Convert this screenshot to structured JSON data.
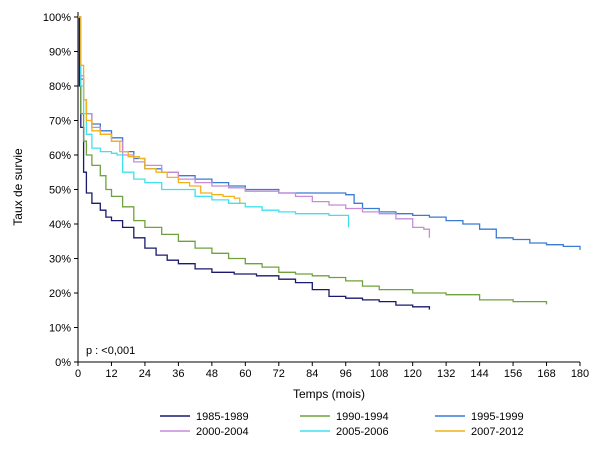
{
  "chart_data": {
    "type": "line",
    "xlabel": "Temps (mois)",
    "ylabel": "Taux de survie",
    "xlim": [
      0,
      180
    ],
    "ylim": [
      0,
      100
    ],
    "x_ticks": [
      0,
      12,
      24,
      36,
      48,
      60,
      72,
      84,
      96,
      108,
      120,
      132,
      144,
      156,
      168,
      180
    ],
    "y_ticks": [
      0,
      10,
      20,
      30,
      40,
      50,
      60,
      70,
      80,
      90,
      100
    ],
    "y_tick_labels": [
      "0%",
      "10%",
      "20%",
      "30%",
      "40%",
      "50%",
      "60%",
      "70%",
      "80%",
      "90%",
      "100%"
    ],
    "grid": false,
    "legend_position": "bottom",
    "annotation": "p : <0,001",
    "series": [
      {
        "name": "1985-1989",
        "color": "#1a1a6e",
        "points": [
          [
            0,
            100
          ],
          [
            0.5,
            80
          ],
          [
            1,
            68
          ],
          [
            2,
            55
          ],
          [
            3,
            49
          ],
          [
            5,
            46
          ],
          [
            8,
            44
          ],
          [
            10,
            42
          ],
          [
            12,
            41
          ],
          [
            16,
            39
          ],
          [
            20,
            36
          ],
          [
            24,
            33
          ],
          [
            28,
            31
          ],
          [
            32,
            29.5
          ],
          [
            36,
            28.5
          ],
          [
            42,
            27
          ],
          [
            48,
            26
          ],
          [
            56,
            25.5
          ],
          [
            64,
            25
          ],
          [
            72,
            24
          ],
          [
            78,
            23
          ],
          [
            84,
            21
          ],
          [
            90,
            19
          ],
          [
            96,
            18.5
          ],
          [
            102,
            18
          ],
          [
            108,
            17.5
          ],
          [
            114,
            16.5
          ],
          [
            120,
            16
          ],
          [
            126,
            15.2
          ]
        ]
      },
      {
        "name": "1990-1994",
        "color": "#6fa23c",
        "points": [
          [
            0,
            100
          ],
          [
            1,
            72
          ],
          [
            2,
            64
          ],
          [
            3,
            60
          ],
          [
            5,
            57
          ],
          [
            8,
            54
          ],
          [
            10,
            50
          ],
          [
            12,
            48
          ],
          [
            16,
            45
          ],
          [
            20,
            41
          ],
          [
            24,
            39
          ],
          [
            30,
            37
          ],
          [
            36,
            35
          ],
          [
            42,
            33
          ],
          [
            48,
            31.5
          ],
          [
            54,
            30
          ],
          [
            60,
            28.5
          ],
          [
            66,
            27.5
          ],
          [
            72,
            26
          ],
          [
            78,
            25.5
          ],
          [
            84,
            25
          ],
          [
            90,
            24.5
          ],
          [
            96,
            23.5
          ],
          [
            102,
            22
          ],
          [
            108,
            21
          ],
          [
            120,
            20
          ],
          [
            132,
            19.5
          ],
          [
            144,
            18
          ],
          [
            156,
            17.5
          ],
          [
            168,
            16.7
          ]
        ]
      },
      {
        "name": "1995-1999",
        "color": "#3a7bd5",
        "points": [
          [
            0,
            100
          ],
          [
            1,
            82
          ],
          [
            2,
            76
          ],
          [
            3,
            72
          ],
          [
            5,
            69
          ],
          [
            8,
            67
          ],
          [
            12,
            65
          ],
          [
            16,
            61
          ],
          [
            20,
            59
          ],
          [
            24,
            56
          ],
          [
            30,
            55
          ],
          [
            36,
            54
          ],
          [
            42,
            53
          ],
          [
            48,
            52
          ],
          [
            54,
            51
          ],
          [
            60,
            50
          ],
          [
            72,
            49
          ],
          [
            84,
            49
          ],
          [
            96,
            48.5
          ],
          [
            99,
            46
          ],
          [
            102,
            44.5
          ],
          [
            108,
            43.5
          ],
          [
            114,
            43
          ],
          [
            120,
            42.5
          ],
          [
            126,
            42
          ],
          [
            132,
            41
          ],
          [
            138,
            40
          ],
          [
            144,
            38.5
          ],
          [
            150,
            36
          ],
          [
            156,
            35.5
          ],
          [
            162,
            34.5
          ],
          [
            168,
            34
          ],
          [
            174,
            33.5
          ],
          [
            180,
            32.5
          ]
        ]
      },
      {
        "name": "2000-2004",
        "color": "#c88bd8",
        "points": [
          [
            0,
            100
          ],
          [
            1,
            83
          ],
          [
            2,
            76
          ],
          [
            3,
            72
          ],
          [
            5,
            68
          ],
          [
            8,
            66
          ],
          [
            12,
            64
          ],
          [
            16,
            60
          ],
          [
            20,
            58
          ],
          [
            24,
            57
          ],
          [
            30,
            55
          ],
          [
            36,
            53
          ],
          [
            42,
            52
          ],
          [
            48,
            51
          ],
          [
            54,
            50.5
          ],
          [
            60,
            49.5
          ],
          [
            72,
            49
          ],
          [
            78,
            48
          ],
          [
            84,
            46.5
          ],
          [
            90,
            45.5
          ],
          [
            96,
            44.5
          ],
          [
            102,
            43.5
          ],
          [
            108,
            43
          ],
          [
            114,
            41.5
          ],
          [
            120,
            39
          ],
          [
            124,
            38.5
          ],
          [
            126,
            36
          ]
        ]
      },
      {
        "name": "2005-2006",
        "color": "#3fe0f0",
        "points": [
          [
            0,
            100
          ],
          [
            1,
            80
          ],
          [
            2,
            72
          ],
          [
            3,
            66
          ],
          [
            5,
            62
          ],
          [
            8,
            61
          ],
          [
            12,
            60.5
          ],
          [
            14,
            60
          ],
          [
            16,
            55
          ],
          [
            20,
            53
          ],
          [
            24,
            52
          ],
          [
            30,
            50
          ],
          [
            36,
            50
          ],
          [
            42,
            48
          ],
          [
            48,
            47
          ],
          [
            54,
            46
          ],
          [
            60,
            45
          ],
          [
            66,
            44
          ],
          [
            72,
            43.5
          ],
          [
            78,
            43
          ],
          [
            84,
            43
          ],
          [
            90,
            42.5
          ],
          [
            95,
            42.5
          ],
          [
            97,
            39
          ]
        ]
      },
      {
        "name": "2007-2012",
        "color": "#f2b21b",
        "points": [
          [
            0,
            100
          ],
          [
            1,
            86
          ],
          [
            2,
            76
          ],
          [
            3,
            70
          ],
          [
            5,
            67
          ],
          [
            8,
            66
          ],
          [
            12,
            64
          ],
          [
            15,
            61
          ],
          [
            18,
            59.5
          ],
          [
            22,
            59
          ],
          [
            24,
            56
          ],
          [
            28,
            55
          ],
          [
            32,
            53.5
          ],
          [
            36,
            52
          ],
          [
            40,
            51
          ],
          [
            44,
            49
          ],
          [
            48,
            48.5
          ],
          [
            52,
            48
          ],
          [
            56,
            47.5
          ],
          [
            58,
            46
          ]
        ]
      }
    ]
  }
}
